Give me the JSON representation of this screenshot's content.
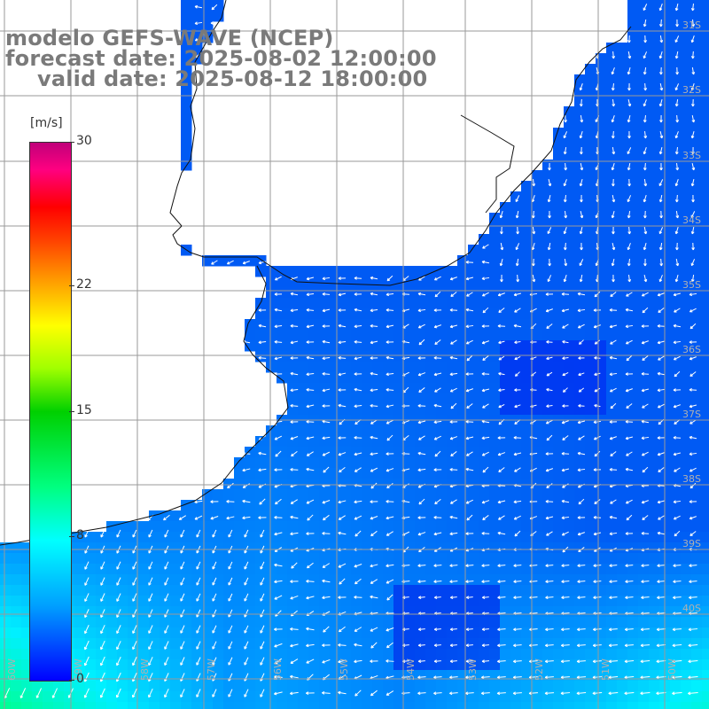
{
  "title": {
    "line1": "modelo GEFS-WAVE (NCEP)",
    "line2": "forecast date: 2025-08-02 12:00:00",
    "line3": "valid date: 2025-08-12 18:00:00"
  },
  "colorbar": {
    "unit": "[m/s]",
    "ticks": [
      {
        "value": 30,
        "label": "30"
      },
      {
        "value": 22,
        "label": "22"
      },
      {
        "value": 15,
        "label": "15"
      },
      {
        "value": 8,
        "label": "8"
      },
      {
        "value": 0,
        "label": "0"
      }
    ],
    "min": 0,
    "max": 30
  },
  "lat_labels": [
    "31S",
    "32S",
    "33S",
    "34S",
    "35S",
    "36S",
    "37S",
    "38S",
    "39S",
    "40S"
  ],
  "lon_labels": [
    "60W",
    "59W",
    "58W",
    "57W",
    "56W",
    "55W",
    "54W",
    "53W",
    "52W",
    "51W",
    "50W"
  ],
  "colors": {
    "ocean_calm": "#1a4ff0",
    "ocean_mid": "#0c7ef5",
    "ocean_strong": "#00d5e0",
    "land": "#ffffff",
    "grid": "#999999",
    "arrows": "#ffffff"
  }
}
